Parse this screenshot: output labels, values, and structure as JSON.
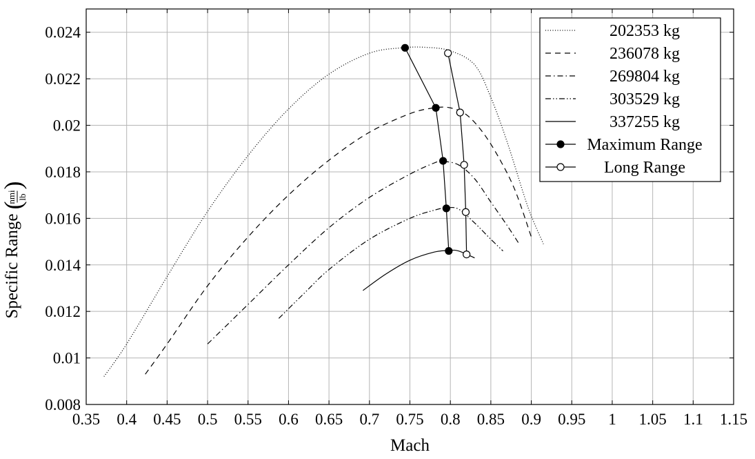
{
  "chart_data": {
    "type": "line",
    "xlabel": "Mach",
    "ylabel": "Specific Range",
    "ylabel_unit_num": "nmi",
    "ylabel_unit_den": "lb",
    "xlim": [
      0.35,
      1.15
    ],
    "ylim": [
      0.008,
      0.025
    ],
    "xticks": [
      0.35,
      0.4,
      0.45,
      0.5,
      0.55,
      0.6,
      0.65,
      0.7,
      0.75,
      0.8,
      0.85,
      0.9,
      0.95,
      1,
      1.05,
      1.1,
      1.15
    ],
    "xtick_labels": [
      "0.35",
      "0.4",
      "0.45",
      "0.5",
      "0.55",
      "0.6",
      "0.65",
      "0.7",
      "0.75",
      "0.8",
      "0.85",
      "0.9",
      "0.95",
      "1",
      "1.05",
      "1.1",
      "1.15"
    ],
    "yticks": [
      0.008,
      0.01,
      0.012,
      0.014,
      0.016,
      0.018,
      0.02,
      0.022,
      0.024
    ],
    "ytick_labels": [
      "0.008",
      "0.01",
      "0.012",
      "0.014",
      "0.016",
      "0.018",
      "0.02",
      "0.022",
      "0.024"
    ],
    "grid": true,
    "legend_position": "top-right",
    "series": [
      {
        "name": "202353 kg",
        "style": "dotted",
        "x": [
          0.372,
          0.4,
          0.45,
          0.5,
          0.55,
          0.6,
          0.65,
          0.7,
          0.74,
          0.77,
          0.8,
          0.83,
          0.85,
          0.87,
          0.89,
          0.9,
          0.915
        ],
        "y": [
          0.0092,
          0.0106,
          0.0135,
          0.0163,
          0.0187,
          0.0207,
          0.0222,
          0.0231,
          0.02333,
          0.02335,
          0.0232,
          0.0226,
          0.0212,
          0.0193,
          0.0171,
          0.0161,
          0.0149
        ]
      },
      {
        "name": "236078 kg",
        "style": "dashed",
        "x": [
          0.423,
          0.45,
          0.5,
          0.55,
          0.6,
          0.65,
          0.7,
          0.75,
          0.78,
          0.8,
          0.82,
          0.84,
          0.86,
          0.88,
          0.9
        ],
        "y": [
          0.0093,
          0.0106,
          0.0131,
          0.0152,
          0.017,
          0.0185,
          0.0197,
          0.0205,
          0.02075,
          0.02075,
          0.02045,
          0.0197,
          0.0186,
          0.0172,
          0.0152
        ]
      },
      {
        "name": "269804 kg",
        "style": "dashdot",
        "x": [
          0.5,
          0.55,
          0.6,
          0.65,
          0.7,
          0.75,
          0.78,
          0.79,
          0.81,
          0.83,
          0.85,
          0.87,
          0.885
        ],
        "y": [
          0.0106,
          0.0123,
          0.014,
          0.0156,
          0.0169,
          0.0179,
          0.01838,
          0.01845,
          0.0183,
          0.0177,
          0.0167,
          0.0157,
          0.0149
        ]
      },
      {
        "name": "303529 kg",
        "style": "dashdotdot",
        "x": [
          0.588,
          0.62,
          0.65,
          0.7,
          0.75,
          0.78,
          0.795,
          0.81,
          0.83,
          0.85,
          0.865
        ],
        "y": [
          0.0117,
          0.0128,
          0.0138,
          0.0151,
          0.016,
          0.01635,
          0.01645,
          0.0164,
          0.0158,
          0.0151,
          0.0146
        ]
      },
      {
        "name": "337255 kg",
        "style": "solid",
        "x": [
          0.692,
          0.72,
          0.75,
          0.78,
          0.798,
          0.81,
          0.83
        ],
        "y": [
          0.0129,
          0.0136,
          0.0142,
          0.01455,
          0.01462,
          0.0146,
          0.0143
        ]
      },
      {
        "name": "Maximum Range",
        "style": "solid-marker-filled",
        "x": [
          0.744,
          0.782,
          0.791,
          0.795,
          0.798
        ],
        "y": [
          0.02333,
          0.02075,
          0.01847,
          0.01643,
          0.0146
        ]
      },
      {
        "name": "Long Range",
        "style": "solid-marker-open",
        "x": [
          0.797,
          0.812,
          0.817,
          0.819,
          0.82
        ],
        "y": [
          0.0231,
          0.02055,
          0.0183,
          0.01627,
          0.01445
        ]
      }
    ]
  }
}
